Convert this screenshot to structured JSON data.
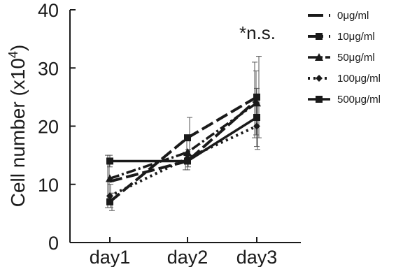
{
  "chart_data": {
    "type": "line",
    "categories": [
      "day1",
      "day2",
      "day3"
    ],
    "ylabel": "Cell number (x10",
    "ylabel_sup": "4",
    "ylabel_close": ")",
    "ylim": [
      0,
      40
    ],
    "yticks": [
      "0",
      "10",
      "20",
      "30",
      "40"
    ],
    "annotation": "*n.s.",
    "grid": false,
    "legend_position": "right",
    "series": [
      {
        "name": "0μg/ml",
        "values": [
          10.5,
          14.0,
          24.5
        ],
        "err": [
          4.5,
          1.5,
          6.5
        ],
        "dash": "long",
        "marker": "none"
      },
      {
        "name": "10μg/ml",
        "values": [
          7.0,
          18.0,
          25.0
        ],
        "err": [
          1.5,
          3.5,
          7.0
        ],
        "dash": "long",
        "marker": "square"
      },
      {
        "name": "50μg/ml",
        "values": [
          11.0,
          15.5,
          24.0
        ],
        "err": [
          3.0,
          2.0,
          5.5
        ],
        "dash": "dashdot",
        "marker": "triangle"
      },
      {
        "name": "100μg/ml",
        "values": [
          8.0,
          14.5,
          20.0
        ],
        "err": [
          2.0,
          1.5,
          4.0
        ],
        "dash": "dot",
        "marker": "diamond"
      },
      {
        "name": "500μg/ml",
        "values": [
          14.0,
          14.0,
          21.5
        ],
        "err": [
          1.0,
          1.5,
          5.0
        ],
        "dash": "solid",
        "marker": "square"
      }
    ]
  }
}
